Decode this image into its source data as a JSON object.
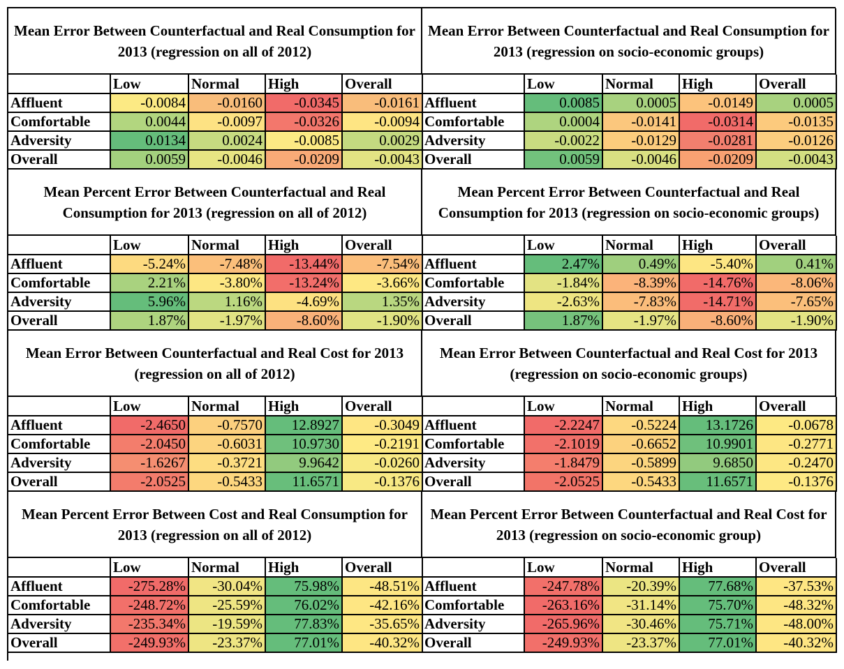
{
  "columns": [
    "",
    "Low",
    "Normal",
    "High",
    "Overall"
  ],
  "rows": [
    "Affluent",
    "Comfortable",
    "Adversity",
    "Overall"
  ],
  "panels": [
    {
      "title": "Mean Error Between Counterfactual and Real Consumption for 2013 (regression on all of 2012)",
      "values": [
        [
          "-0.0084",
          "-0.0160",
          "-0.0345",
          "-0.0161"
        ],
        [
          "0.0044",
          "-0.0097",
          "-0.0326",
          "-0.0094"
        ],
        [
          "0.0134",
          "0.0024",
          "-0.0085",
          "0.0029"
        ],
        [
          "0.0059",
          "-0.0046",
          "-0.0209",
          "-0.0043"
        ]
      ],
      "colors": [
        [
          "#fcea84",
          "#f9bd7b",
          "#f16b69",
          "#f9bd7b"
        ],
        [
          "#b2d67f",
          "#fde283",
          "#f3776c",
          "#fee583"
        ],
        [
          "#65bd7b",
          "#c7db81",
          "#fcea84",
          "#c4da80"
        ],
        [
          "#a3d17e",
          "#e7e583",
          "#f8aa77",
          "#e2e383"
        ]
      ]
    },
    {
      "title": "Mean Error Between Counterfactual and Real Consumption for 2013 (regression on socio-economic groups)",
      "values": [
        [
          "0.0085",
          "0.0005",
          "-0.0149",
          "0.0005"
        ],
        [
          "0.0004",
          "-0.0141",
          "-0.0314",
          "-0.0135"
        ],
        [
          "-0.0022",
          "-0.0129",
          "-0.0281",
          "-0.0126"
        ],
        [
          "0.0059",
          "-0.0046",
          "-0.0209",
          "-0.0043"
        ]
      ],
      "colors": [
        [
          "#65bd7b",
          "#a8d27f",
          "#fcc37c",
          "#a8d27f"
        ],
        [
          "#aed47f",
          "#fbc77d",
          "#f16b69",
          "#fcca7d"
        ],
        [
          "#c9dc81",
          "#fccc7d",
          "#f27f6e",
          "#fccd7e"
        ],
        [
          "#72c17c",
          "#d9e082",
          "#f8a172",
          "#d3df82"
        ]
      ]
    },
    {
      "title": "Mean Percent Error Between Counterfactual and Real Consumption for 2013 (regression on all of 2012)",
      "values": [
        [
          "-5.24%",
          "-7.48%",
          "-13.44%",
          "-7.54%"
        ],
        [
          "2.21%",
          "-3.80%",
          "-13.24%",
          "-3.66%"
        ],
        [
          "5.96%",
          "1.16%",
          "-4.69%",
          "1.35%"
        ],
        [
          "1.87%",
          "-1.97%",
          "-8.60%",
          "-1.90%"
        ]
      ],
      "colors": [
        [
          "#fdda80",
          "#fbbf7b",
          "#f16b69",
          "#fbbe7b"
        ],
        [
          "#a9d27f",
          "#fde783",
          "#f26e6a",
          "#fee883"
        ],
        [
          "#65bd7b",
          "#bbd880",
          "#fde181",
          "#b9d780"
        ],
        [
          "#aed47f",
          "#e1e383",
          "#f9b179",
          "#e0e383"
        ]
      ]
    },
    {
      "title": "Mean Percent Error Between Counterfactual and Real Consumption for 2013 (regression on socio-economic groups)",
      "values": [
        [
          "2.47%",
          "0.49%",
          "-5.40%",
          "0.41%"
        ],
        [
          "-1.84%",
          "-8.39%",
          "-14.76%",
          "-8.06%"
        ],
        [
          "-2.63%",
          "-7.83%",
          "-14.71%",
          "-7.65%"
        ],
        [
          "1.87%",
          "-1.97%",
          "-8.60%",
          "-1.90%"
        ]
      ],
      "colors": [
        [
          "#65bd7b",
          "#9fcf7e",
          "#fde683",
          "#a1d07e"
        ],
        [
          "#e3e383",
          "#fbb37a",
          "#f16b69",
          "#fbb77a"
        ],
        [
          "#eee582",
          "#fbbd7b",
          "#f16c69",
          "#fbbf7b"
        ],
        [
          "#76c27c",
          "#e5e383",
          "#f9b079",
          "#e3e383"
        ]
      ]
    },
    {
      "title": "Mean Error Between Counterfactual and Real Cost for 2013 (regression on all of 2012)",
      "values": [
        [
          "-2.4650",
          "-0.7570",
          "12.8927",
          "-0.3049"
        ],
        [
          "-2.0450",
          "-0.6031",
          "10.9730",
          "-0.2191"
        ],
        [
          "-1.6267",
          "-0.3721",
          "9.9642",
          "-0.0260"
        ],
        [
          "-2.0525",
          "-0.5433",
          "11.6571",
          "-0.1376"
        ]
      ],
      "colors": [
        [
          "#f16b69",
          "#fcd07e",
          "#65bd7b",
          "#fee683"
        ],
        [
          "#f37d6c",
          "#fcd47f",
          "#6fc07c",
          "#feea84"
        ],
        [
          "#f58e71",
          "#fddd81",
          "#92ca7e",
          "#f8e984"
        ],
        [
          "#f37c6c",
          "#fdd77f",
          "#68be7b",
          "#f8e984"
        ]
      ]
    },
    {
      "title": "Mean Error Between Counterfactual and Real Cost for 2013 (regression on socio-economic groups)",
      "values": [
        [
          "-2.2247",
          "-0.5224",
          "13.1726",
          "-0.0678"
        ],
        [
          "-2.1019",
          "-0.6652",
          "10.9901",
          "-0.2771"
        ],
        [
          "-1.8479",
          "-0.5899",
          "9.6850",
          "-0.2470"
        ],
        [
          "-2.0525",
          "-0.5433",
          "11.6571",
          "-0.1376"
        ]
      ],
      "colors": [
        [
          "#f16b69",
          "#fdd880",
          "#65bd7b",
          "#fde983"
        ],
        [
          "#f2716a",
          "#fcd27e",
          "#6fc07c",
          "#fde683"
        ],
        [
          "#f47e6d",
          "#fcd57f",
          "#92ca7e",
          "#fde783"
        ],
        [
          "#f27468",
          "#fdd77f",
          "#68be7b",
          "#fee984"
        ]
      ]
    },
    {
      "title": "Mean Percent Error Between Cost and Real Consumption for 2013 (regression on all of 2012)",
      "values": [
        [
          "-275.28%",
          "-30.04%",
          "75.98%",
          "-48.51%"
        ],
        [
          "-248.72%",
          "-25.59%",
          "76.02%",
          "-42.16%"
        ],
        [
          "-235.34%",
          "-19.59%",
          "77.83%",
          "-35.65%"
        ],
        [
          "-249.93%",
          "-23.37%",
          "77.01%",
          "-40.32%"
        ]
      ],
      "colors": [
        [
          "#f16b69",
          "#f1e584",
          "#65bd7b",
          "#fde683"
        ],
        [
          "#f2706a",
          "#eee583",
          "#65bd7b",
          "#fee683"
        ],
        [
          "#f3786c",
          "#ece583",
          "#65bd7b",
          "#fee783"
        ],
        [
          "#f2706a",
          "#eee583",
          "#65bd7b",
          "#fee683"
        ]
      ]
    },
    {
      "title": "Mean Percent Error Between Counterfactual and Real Cost for 2013 (regression on socio-economic group)",
      "values": [
        [
          "-247.78%",
          "-20.39%",
          "77.68%",
          "-37.53%"
        ],
        [
          "-263.16%",
          "-31.14%",
          "75.70%",
          "-48.32%"
        ],
        [
          "-265.96%",
          "-30.46%",
          "75.71%",
          "-48.00%"
        ],
        [
          "-249.93%",
          "-23.37%",
          "77.01%",
          "-40.32%"
        ]
      ],
      "colors": [
        [
          "#f2706a",
          "#ebe583",
          "#65bd7b",
          "#fee683"
        ],
        [
          "#f16b69",
          "#f1e584",
          "#65bd7b",
          "#fde683"
        ],
        [
          "#f16b69",
          "#f1e584",
          "#65bd7b",
          "#fde683"
        ],
        [
          "#f2706a",
          "#eee583",
          "#65bd7b",
          "#fee683"
        ]
      ]
    }
  ]
}
